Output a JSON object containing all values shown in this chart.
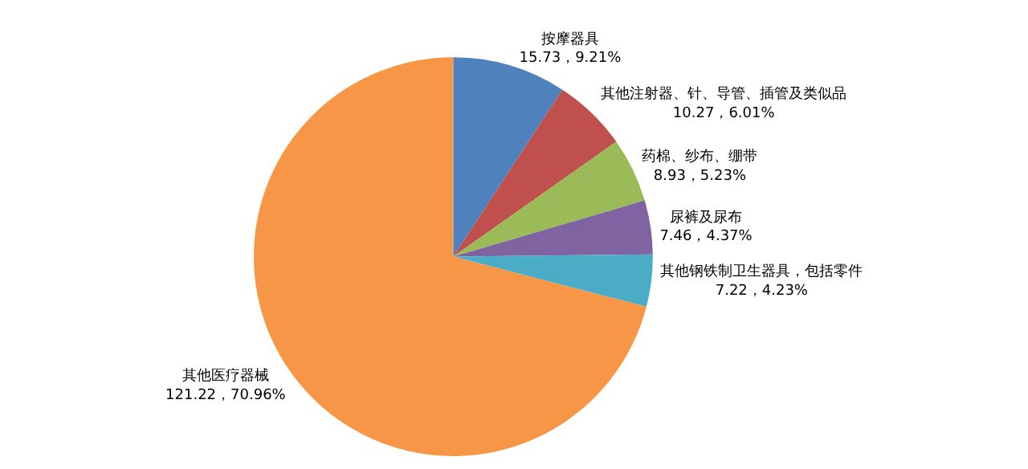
{
  "chart_data": {
    "type": "pie",
    "categories": [
      "按摩器具",
      "其他注射器、针、导管、插管及类似品",
      "药棉、纱布、绷带",
      "尿裤及尿布",
      "其他钢铁制卫生器具，包括零件",
      "其他医疗器械"
    ],
    "values": [
      15.73,
      10.27,
      8.93,
      7.46,
      7.22,
      121.22
    ],
    "colors": [
      "#4f81bd",
      "#c0504d",
      "#9bbb59",
      "#8064a2",
      "#4bacc6",
      "#f79646"
    ],
    "value_labels": [
      "15.73，9.21%",
      "10.27，6.01%",
      "8.93，5.23%",
      "7.46，4.37%",
      "7.22，4.23%",
      "121.22，70.96%"
    ],
    "legend": false
  }
}
